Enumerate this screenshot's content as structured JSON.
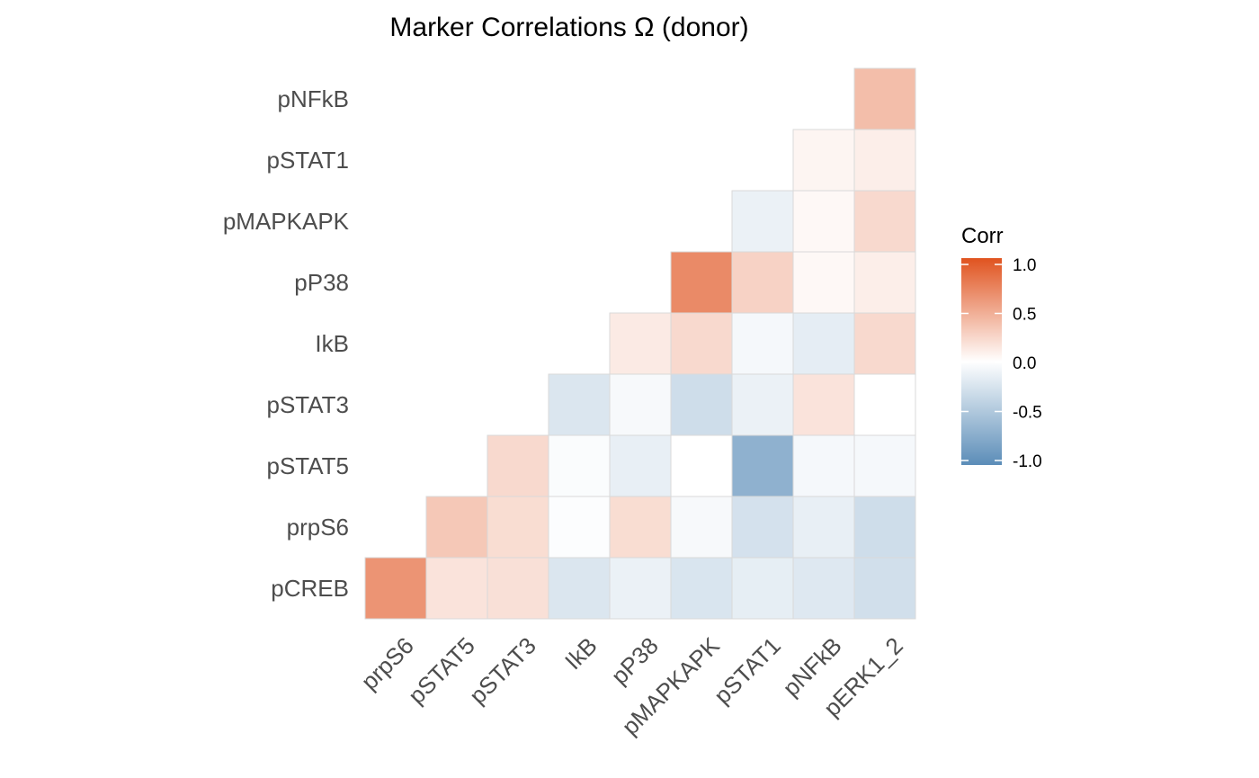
{
  "chart_data": {
    "type": "heatmap",
    "title": "Marker Correlations Ω (donor)",
    "x_categories": [
      "prpS6",
      "pSTAT5",
      "pSTAT3",
      "IkB",
      "pP38",
      "pMAPKAPK",
      "pSTAT1",
      "pNFkB",
      "pERK1_2"
    ],
    "y_categories": [
      "pCREB",
      "prpS6",
      "pSTAT5",
      "pSTAT3",
      "IkB",
      "pP38",
      "pMAPKAPK",
      "pSTAT1",
      "pNFkB"
    ],
    "matrix": [
      [
        0.62,
        0.16,
        0.18,
        -0.22,
        -0.12,
        -0.23,
        -0.15,
        -0.2,
        -0.28
      ],
      [
        null,
        0.32,
        0.2,
        -0.02,
        0.2,
        -0.05,
        -0.26,
        -0.14,
        -0.3
      ],
      [
        null,
        null,
        0.22,
        -0.03,
        -0.14,
        0.0,
        -0.68,
        -0.06,
        -0.06
      ],
      [
        null,
        null,
        null,
        -0.22,
        -0.05,
        -0.3,
        -0.12,
        0.16,
        0.0
      ],
      [
        null,
        null,
        null,
        null,
        0.12,
        0.22,
        -0.06,
        -0.16,
        0.22
      ],
      [
        null,
        null,
        null,
        null,
        null,
        0.68,
        0.26,
        0.04,
        0.1
      ],
      [
        null,
        null,
        null,
        null,
        null,
        null,
        -0.12,
        0.04,
        0.22
      ],
      [
        null,
        null,
        null,
        null,
        null,
        null,
        null,
        0.06,
        0.1
      ],
      [
        null,
        null,
        null,
        null,
        null,
        null,
        null,
        null,
        0.38
      ]
    ],
    "legend": {
      "title": "Corr",
      "min": -1.0,
      "max": 1.0,
      "ticks": [
        1.0,
        0.5,
        0.0,
        -0.5,
        -1.0
      ],
      "tick_labels": [
        "1.0",
        "0.5",
        "0.0",
        "-0.5",
        "-1.0"
      ],
      "position": "right"
    },
    "colors": {
      "high": "#E0531F",
      "mid": "#FFFFFF",
      "low": "#5B8DB8",
      "label": "#4D4D4D"
    },
    "grid": false
  }
}
